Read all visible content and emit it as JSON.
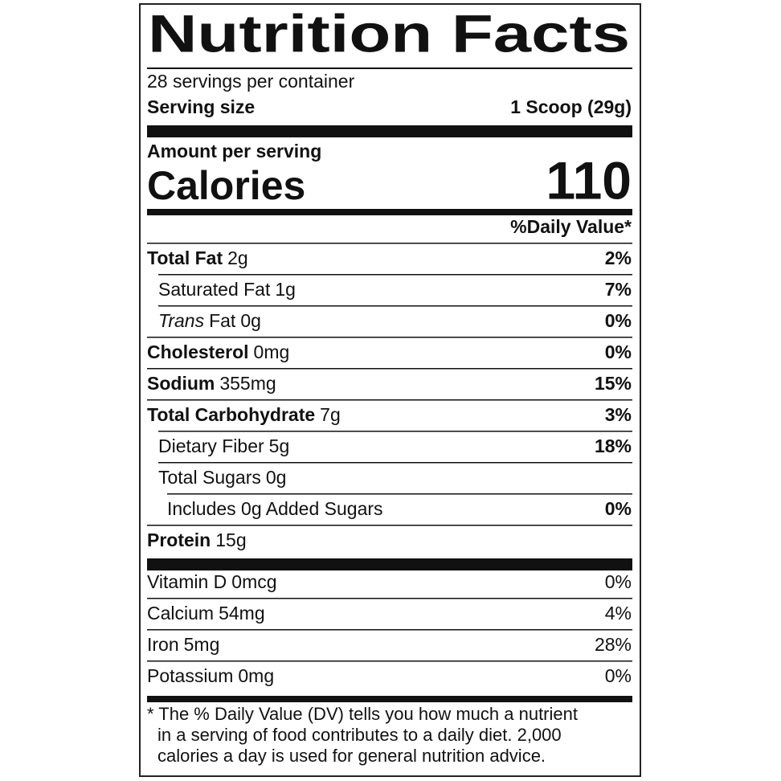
{
  "title": "Nutrition Facts",
  "servings": "28 servings per container",
  "serving_size": {
    "label": "Serving size",
    "value": "1 Scoop (29g)"
  },
  "amount_per_serving": "Amount per serving",
  "calories": {
    "label": "Calories",
    "value": "110"
  },
  "daily_value_header": "%Daily Value*",
  "nutrients": [
    {
      "name": "Total Fat",
      "amount": "2g",
      "dv": "2%"
    },
    {
      "name": "Saturated Fat",
      "amount": "1g",
      "dv": "7%"
    },
    {
      "name_italic": "Trans",
      "name": "Fat",
      "amount": "0g",
      "dv": "0%"
    },
    {
      "name": "Cholesterol",
      "amount": "0mg",
      "dv": "0%"
    },
    {
      "name": "Sodium",
      "amount": "355mg",
      "dv": "15%"
    },
    {
      "name": "Total Carbohydrate",
      "amount": "7g",
      "dv": "3%"
    },
    {
      "name": "Dietary Fiber",
      "amount": "5g",
      "dv": "18%"
    },
    {
      "name": "Total Sugars",
      "amount": "0g"
    },
    {
      "name": "Includes 0g Added Sugars",
      "dv": "0%"
    },
    {
      "name": "Protein",
      "amount": "15g"
    }
  ],
  "vitamins": [
    {
      "name": "Vitamin D",
      "amount": "0mcg",
      "dv": "0%"
    },
    {
      "name": "Calcium",
      "amount": "54mg",
      "dv": "4%"
    },
    {
      "name": "Iron",
      "amount": "5mg",
      "dv": "28%"
    },
    {
      "name": "Potassium",
      "amount": "0mg",
      "dv": "0%"
    }
  ],
  "footnote": [
    "* The % Daily Value (DV) tells you how much a nutrient",
    "in a serving of food contributes to a daily diet. 2,000",
    "calories a day is used for general nutrition advice."
  ]
}
